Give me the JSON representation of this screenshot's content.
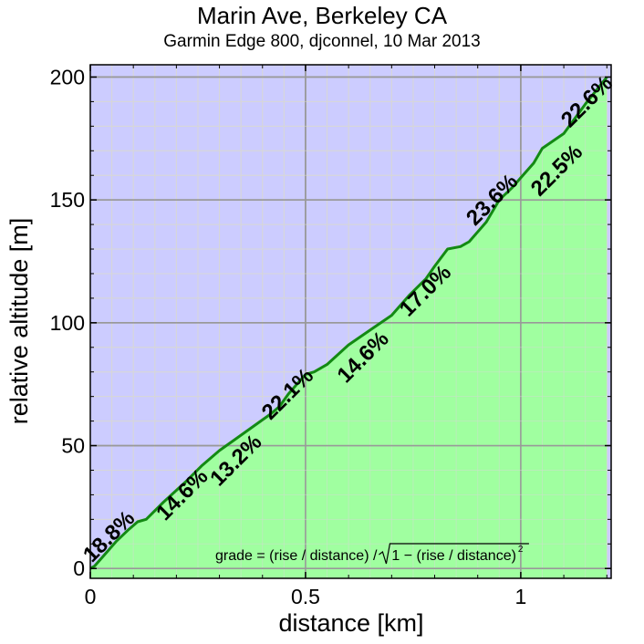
{
  "chart_data": {
    "type": "area",
    "title": "Marin Ave, Berkeley CA",
    "subtitle": "Garmin Edge 800, djconnel, 10 Mar 2013",
    "xlabel": "distance [km]",
    "ylabel": "relative altitude [m]",
    "xlim": [
      0,
      1.21
    ],
    "ylim": [
      -4,
      205
    ],
    "x_ticks": [
      0,
      0.5,
      1
    ],
    "x_tick_labels": [
      "0",
      "0.5",
      "1"
    ],
    "y_ticks": [
      0,
      50,
      100,
      150,
      200
    ],
    "y_tick_labels": [
      "0",
      "50",
      "100",
      "150",
      "200"
    ],
    "grid": true,
    "x": [
      0,
      0.01,
      0.03,
      0.06,
      0.09,
      0.11,
      0.13,
      0.17,
      0.22,
      0.26,
      0.3,
      0.34,
      0.38,
      0.42,
      0.44,
      0.46,
      0.48,
      0.5,
      0.52,
      0.55,
      0.6,
      0.65,
      0.7,
      0.74,
      0.78,
      0.8,
      0.83,
      0.86,
      0.88,
      0.9,
      0.92,
      0.95,
      0.98,
      1.0,
      1.03,
      1.05,
      1.1,
      1.15,
      1.2
    ],
    "y": [
      0,
      1,
      5,
      11,
      16,
      19,
      20,
      27,
      35,
      42,
      48,
      53,
      58,
      63,
      66,
      71,
      75,
      79,
      80,
      83,
      91,
      97,
      103,
      111,
      118,
      123,
      130,
      131,
      133,
      137,
      141,
      150,
      155,
      159,
      165,
      171,
      177,
      189,
      200
    ],
    "grade_labels": [
      {
        "text": "18.8%",
        "x": 0.055,
        "y": 11
      },
      {
        "text": "14.6%",
        "x": 0.225,
        "y": 28
      },
      {
        "text": "13.2%",
        "x": 0.35,
        "y": 42
      },
      {
        "text": "22.1%",
        "x": 0.47,
        "y": 69
      },
      {
        "text": "14.6%",
        "x": 0.645,
        "y": 84
      },
      {
        "text": "17.0%",
        "x": 0.79,
        "y": 111
      },
      {
        "text": "23.6%",
        "x": 0.945,
        "y": 148
      },
      {
        "text": "22.5%",
        "x": 1.095,
        "y": 160
      },
      {
        "text": "22.6%",
        "x": 1.165,
        "y": 188
      }
    ],
    "annotation": {
      "prefix": "grade = (rise / distance) / ",
      "sqrt_body": "1 − (rise / distance)",
      "exponent": "2"
    },
    "colors": {
      "sky": "#ccccff",
      "fill": "#a0ffa0",
      "line": "#138a13",
      "major_grid": "#999999",
      "minor_grid": "#d8d8d8"
    }
  }
}
